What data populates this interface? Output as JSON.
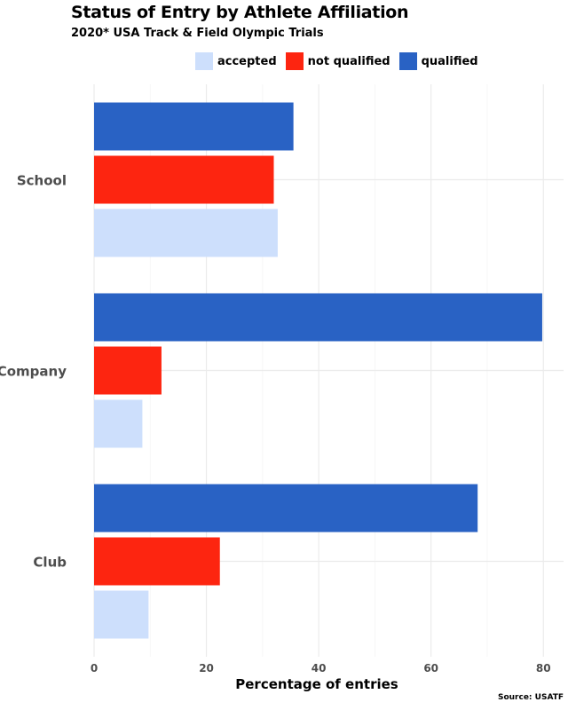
{
  "chart_data": {
    "type": "bar",
    "orientation": "horizontal",
    "title": "Status of Entry by Athlete Affiliation",
    "subtitle": "2020* USA Track & Field Olympic Trials",
    "xlabel": "Percentage of entries",
    "ylabel": "",
    "caption": "Source: USATF",
    "categories": [
      "School",
      "Company",
      "Club"
    ],
    "series": [
      {
        "name": "qualified",
        "color": "#2962c4",
        "values": [
          35.5,
          79.8,
          68.3
        ]
      },
      {
        "name": "not qualified",
        "color": "#fd2510",
        "values": [
          32.0,
          12.0,
          22.4
        ]
      },
      {
        "name": "accepted",
        "color": "#cddffc",
        "values": [
          32.7,
          8.6,
          9.7
        ]
      }
    ],
    "legend_order": [
      "accepted",
      "not qualified",
      "qualified"
    ],
    "legend_position": "top",
    "xlim": [
      0,
      83.6
    ],
    "xticks": [
      0,
      20,
      40,
      60,
      80
    ],
    "grid": true
  }
}
